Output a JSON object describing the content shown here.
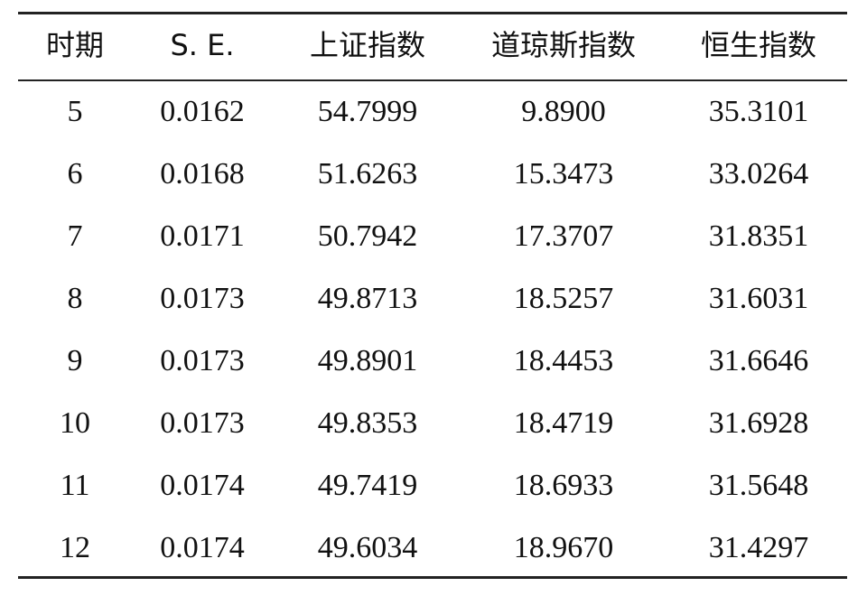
{
  "table": {
    "header": [
      "时期",
      "S. E.",
      "上证指数",
      "道琼斯指数",
      "恒生指数"
    ],
    "rows": [
      [
        "5",
        "0.0162",
        "54.7999",
        "9.8900",
        "35.3101"
      ],
      [
        "6",
        "0.0168",
        "51.6263",
        "15.3473",
        "33.0264"
      ],
      [
        "7",
        "0.0171",
        "50.7942",
        "17.3707",
        "31.8351"
      ],
      [
        "8",
        "0.0173",
        "49.8713",
        "18.5257",
        "31.6031"
      ],
      [
        "9",
        "0.0173",
        "49.8901",
        "18.4453",
        "31.6646"
      ],
      [
        "10",
        "0.0173",
        "49.8353",
        "18.4719",
        "31.6928"
      ],
      [
        "11",
        "0.0174",
        "49.7419",
        "18.6933",
        "31.5648"
      ],
      [
        "12",
        "0.0174",
        "49.6034",
        "18.9670",
        "31.4297"
      ]
    ]
  }
}
